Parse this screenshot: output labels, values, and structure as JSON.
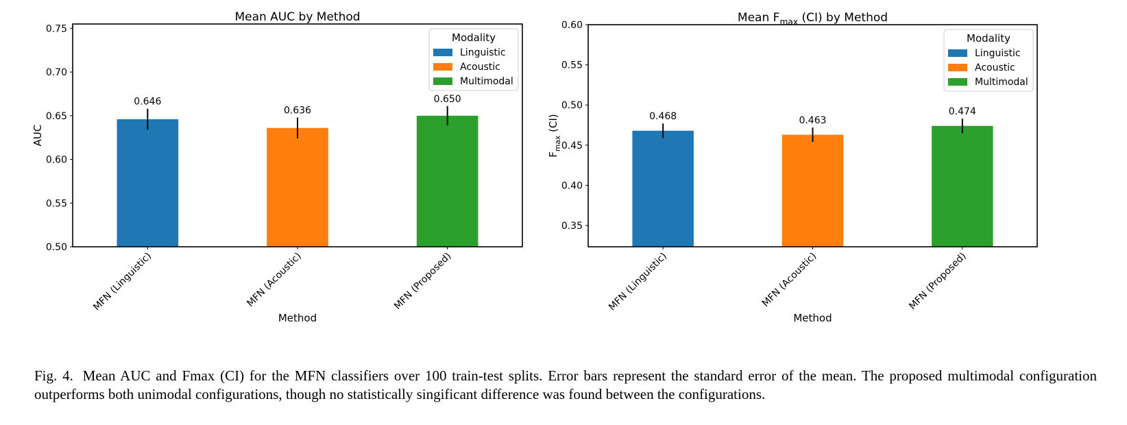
{
  "figure": {
    "caption_label": "Fig. 4.",
    "caption_text": "Mean AUC and Fmax (CI) for the MFN classifiers over 100 train-test splits. Error bars represent the standard error of the mean. The proposed multimodal configuration outperforms both unimodal configurations, though no statistically singificant difference was found between the configurations."
  },
  "chart_data": [
    {
      "type": "bar",
      "title": "Mean AUC by Method",
      "title_parts": [
        "Mean AUC by Method"
      ],
      "xlabel": "Method",
      "ylabel": "AUC",
      "ylabel_parts": [
        "AUC"
      ],
      "categories": [
        "MFN (Linguistic)",
        "MFN (Acoustic)",
        "MFN (Proposed)"
      ],
      "values": [
        0.646,
        0.636,
        0.65
      ],
      "value_labels": [
        "0.646",
        "0.636",
        "0.650"
      ],
      "errors": [
        0.012,
        0.012,
        0.011
      ],
      "colors": [
        "#1f77b4",
        "#ff7f0e",
        "#2ca02c"
      ],
      "ylim": [
        0.5,
        0.755
      ],
      "yticks": [
        0.5,
        0.55,
        0.6,
        0.65,
        0.7,
        0.75
      ],
      "ytick_labels": [
        "0.50",
        "0.55",
        "0.60",
        "0.65",
        "0.70",
        "0.75"
      ],
      "grid": false,
      "legend": {
        "title": "Modality",
        "placement": "top-right",
        "entries": [
          {
            "label": "Linguistic",
            "color": "#1f77b4"
          },
          {
            "label": "Acoustic",
            "color": "#ff7f0e"
          },
          {
            "label": "Multimodal",
            "color": "#2ca02c"
          }
        ]
      }
    },
    {
      "type": "bar",
      "title": "Mean Fmax (CI) by Method",
      "title_parts": [
        "Mean F",
        "max",
        " (CI) by Method"
      ],
      "xlabel": "Method",
      "ylabel": "Fmax (CI)",
      "ylabel_parts": [
        "F",
        "max",
        " (CI)"
      ],
      "categories": [
        "MFN (Linguistic)",
        "MFN (Acoustic)",
        "MFN (Proposed)"
      ],
      "values": [
        0.468,
        0.463,
        0.474
      ],
      "value_labels": [
        "0.468",
        "0.463",
        "0.474"
      ],
      "errors": [
        0.009,
        0.009,
        0.009
      ],
      "colors": [
        "#1f77b4",
        "#ff7f0e",
        "#2ca02c"
      ],
      "ylim": [
        0.3235,
        0.6
      ],
      "yticks": [
        0.35,
        0.4,
        0.45,
        0.5,
        0.55,
        0.6
      ],
      "ytick_labels": [
        "0.35",
        "0.40",
        "0.45",
        "0.50",
        "0.55",
        "0.60"
      ],
      "grid": false,
      "legend": {
        "title": "Modality",
        "placement": "top-right",
        "entries": [
          {
            "label": "Linguistic",
            "color": "#1f77b4"
          },
          {
            "label": "Acoustic",
            "color": "#ff7f0e"
          },
          {
            "label": "Multimodal",
            "color": "#2ca02c"
          }
        ]
      }
    }
  ]
}
